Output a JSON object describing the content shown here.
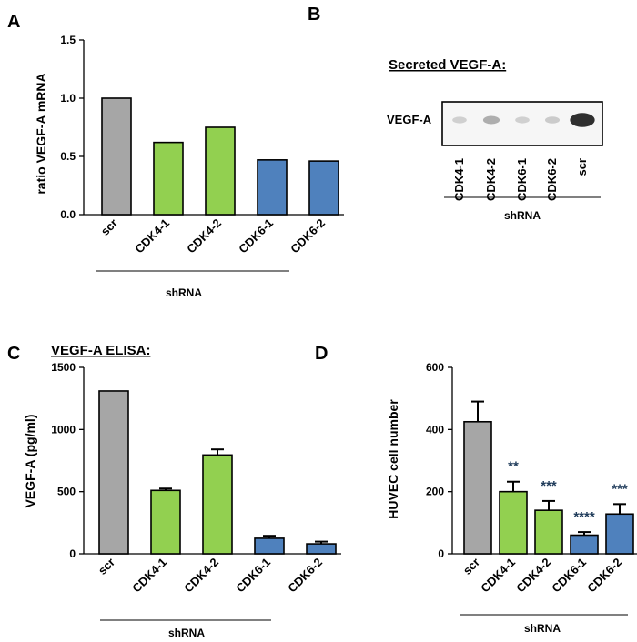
{
  "colors": {
    "scr": "#a6a6a6",
    "CDK4": "#92d050",
    "CDK6": "#4f81bd",
    "error": "#000000",
    "significance": "#1f3b5a"
  },
  "chart_data": [
    {
      "panel": "A",
      "type": "bar",
      "title": "",
      "categories": [
        "scr",
        "CDK4-1",
        "CDK4-2",
        "CDK6-1",
        "CDK6-2"
      ],
      "values": [
        1.0,
        0.62,
        0.75,
        0.47,
        0.46
      ],
      "ylabel": "ratio VEGF-A mRNA",
      "xlabel": "shRNA",
      "ylim": [
        0,
        1.5
      ],
      "yticks": [
        "0.0",
        "0.5",
        "1.0",
        "1.5"
      ],
      "ytick_values": [
        0,
        0.5,
        1.0,
        1.5
      ],
      "grid": false
    },
    {
      "panel": "B",
      "type": "blot",
      "title": "Secreted VEGF-A:",
      "row_label": "VEGF-A",
      "lanes": [
        "CDK4-1",
        "CDK4-2",
        "CDK6-1",
        "CDK6-2",
        "scr"
      ],
      "band_intensity": [
        0.12,
        0.3,
        0.12,
        0.15,
        0.95
      ],
      "xlabel": "shRNA"
    },
    {
      "panel": "C",
      "type": "bar",
      "title": "VEGF-A ELISA:",
      "categories": [
        "scr",
        "CDK4-1",
        "CDK4-2",
        "CDK6-1",
        "CDK6-2"
      ],
      "values": [
        1310,
        510,
        795,
        125,
        80
      ],
      "errors": [
        0,
        15,
        45,
        20,
        18
      ],
      "ylabel": "VEGF-A (pg/ml)",
      "xlabel": "shRNA",
      "ylim": [
        0,
        1500
      ],
      "yticks": [
        "0",
        "500",
        "1000",
        "1500"
      ],
      "ytick_values": [
        0,
        500,
        1000,
        1500
      ],
      "grid": false
    },
    {
      "panel": "D",
      "type": "bar",
      "title": "",
      "categories": [
        "scr",
        "CDK4-1",
        "CDK4-2",
        "CDK6-1",
        "CDK6-2"
      ],
      "values": [
        425,
        200,
        140,
        60,
        128
      ],
      "errors": [
        65,
        32,
        30,
        10,
        32
      ],
      "significance": [
        "",
        "**",
        "***",
        "****",
        "***"
      ],
      "ylabel": "HUVEC cell number",
      "xlabel": "shRNA",
      "ylim": [
        0,
        600
      ],
      "yticks": [
        "0",
        "200",
        "400",
        "600"
      ],
      "ytick_values": [
        0,
        200,
        400,
        600
      ],
      "grid": false
    }
  ]
}
